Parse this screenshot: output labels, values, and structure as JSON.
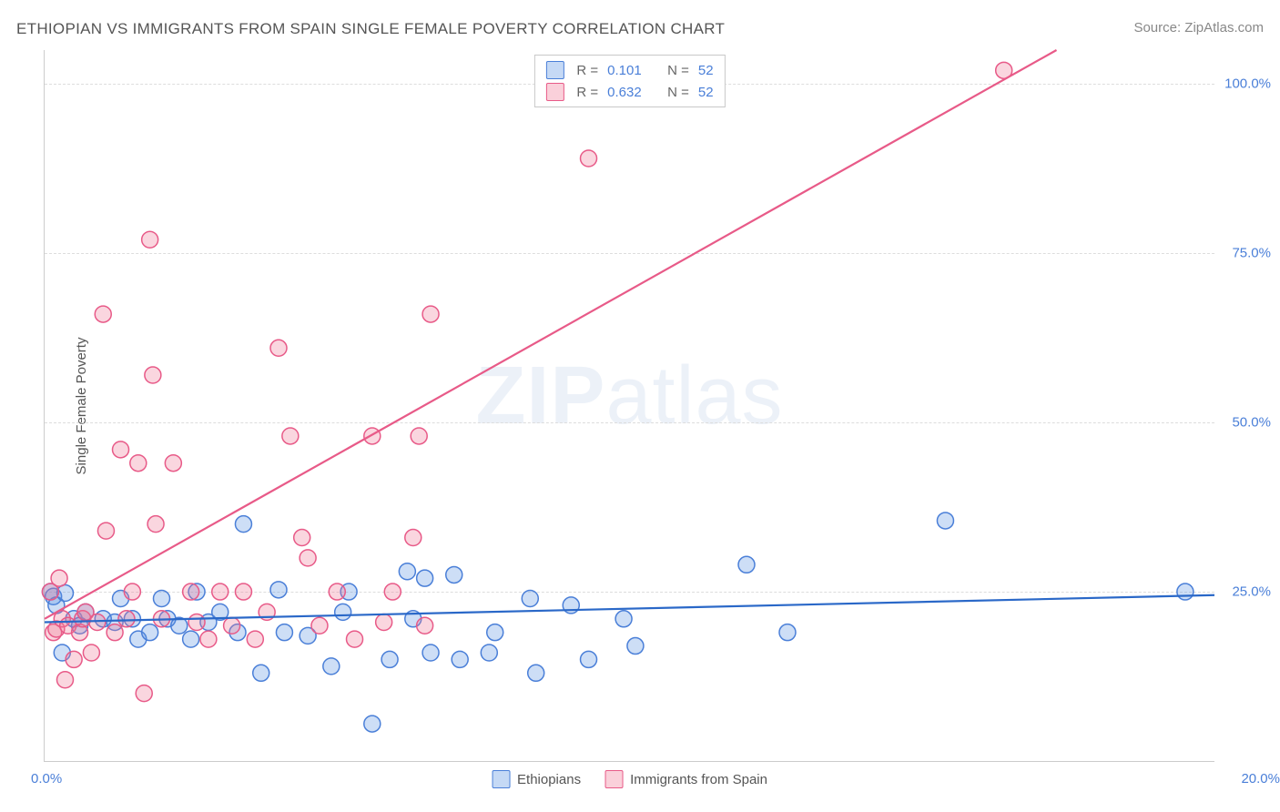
{
  "title": "ETHIOPIAN VS IMMIGRANTS FROM SPAIN SINGLE FEMALE POVERTY CORRELATION CHART",
  "source": "Source: ZipAtlas.com",
  "y_axis_label": "Single Female Poverty",
  "watermark_zip": "ZIP",
  "watermark_atlas": "atlas",
  "chart": {
    "type": "scatter",
    "x_range": [
      0,
      20
    ],
    "y_range": [
      0,
      105
    ],
    "x_tick_labels": {
      "start": "0.0%",
      "end": "20.0%"
    },
    "y_gridlines": [
      25,
      50,
      75,
      100
    ],
    "y_tick_labels": [
      "25.0%",
      "50.0%",
      "75.0%",
      "100.0%"
    ],
    "background_color": "#ffffff",
    "grid_color": "#dddddd",
    "axis_color": "#cccccc",
    "tick_label_color": "#4a7fd8",
    "axis_label_color": "#555555",
    "marker_radius": 9,
    "marker_stroke_width": 1.5,
    "line_width": 2.2,
    "series": [
      {
        "name": "Ethiopians",
        "fill_color": "rgba(90,145,225,0.30)",
        "stroke_color": "#4a7fd8",
        "line_color": "#2a68c8",
        "R": "0.101",
        "N": "52",
        "trend_line": {
          "x1": 0,
          "y1": 20.5,
          "x2": 20,
          "y2": 24.5
        },
        "points": [
          [
            0.1,
            25
          ],
          [
            0.15,
            24.3
          ],
          [
            0.2,
            23
          ],
          [
            0.3,
            16
          ],
          [
            0.35,
            24.8
          ],
          [
            0.5,
            21
          ],
          [
            0.6,
            20
          ],
          [
            0.7,
            22
          ],
          [
            1.0,
            21
          ],
          [
            1.2,
            20.5
          ],
          [
            1.3,
            24
          ],
          [
            1.5,
            21
          ],
          [
            1.6,
            18
          ],
          [
            1.8,
            19
          ],
          [
            2.0,
            24
          ],
          [
            2.1,
            21
          ],
          [
            2.3,
            20
          ],
          [
            2.5,
            18
          ],
          [
            2.6,
            25
          ],
          [
            2.8,
            20.5
          ],
          [
            3.0,
            22
          ],
          [
            3.3,
            19
          ],
          [
            3.4,
            35
          ],
          [
            3.7,
            13
          ],
          [
            4.0,
            25.3
          ],
          [
            4.1,
            19
          ],
          [
            4.5,
            18.5
          ],
          [
            4.9,
            14
          ],
          [
            5.1,
            22
          ],
          [
            5.2,
            25
          ],
          [
            5.6,
            5.5
          ],
          [
            5.9,
            15
          ],
          [
            6.2,
            28
          ],
          [
            6.3,
            21
          ],
          [
            6.5,
            27
          ],
          [
            6.6,
            16
          ],
          [
            7.0,
            27.5
          ],
          [
            7.1,
            15
          ],
          [
            7.6,
            16
          ],
          [
            7.7,
            19
          ],
          [
            8.3,
            24
          ],
          [
            8.4,
            13
          ],
          [
            9.0,
            23
          ],
          [
            9.3,
            15
          ],
          [
            9.9,
            21
          ],
          [
            10.1,
            17
          ],
          [
            12.0,
            29
          ],
          [
            12.7,
            19
          ],
          [
            15.4,
            35.5
          ],
          [
            19.5,
            25
          ]
        ]
      },
      {
        "name": "Immigrants from Spain",
        "fill_color": "rgba(240,120,150,0.30)",
        "stroke_color": "#e85a88",
        "line_color": "#e85a88",
        "R": "0.632",
        "N": "52",
        "trend_line": {
          "x1": 0,
          "y1": 21,
          "x2": 17.3,
          "y2": 105
        },
        "points": [
          [
            0.1,
            25
          ],
          [
            0.15,
            19
          ],
          [
            0.2,
            19.5
          ],
          [
            0.25,
            27
          ],
          [
            0.3,
            21
          ],
          [
            0.35,
            12
          ],
          [
            0.4,
            20
          ],
          [
            0.5,
            15
          ],
          [
            0.6,
            19
          ],
          [
            0.65,
            21
          ],
          [
            0.7,
            22
          ],
          [
            0.8,
            16
          ],
          [
            0.9,
            20.5
          ],
          [
            1.0,
            66
          ],
          [
            1.05,
            34
          ],
          [
            1.2,
            19
          ],
          [
            1.3,
            46
          ],
          [
            1.4,
            21
          ],
          [
            1.5,
            25
          ],
          [
            1.6,
            44
          ],
          [
            1.7,
            10
          ],
          [
            1.8,
            77
          ],
          [
            1.85,
            57
          ],
          [
            1.9,
            35
          ],
          [
            2.0,
            21
          ],
          [
            2.2,
            44
          ],
          [
            2.5,
            25
          ],
          [
            2.6,
            20.5
          ],
          [
            2.8,
            18
          ],
          [
            3.0,
            25
          ],
          [
            3.2,
            20
          ],
          [
            3.4,
            25
          ],
          [
            3.6,
            18
          ],
          [
            3.8,
            22
          ],
          [
            4.0,
            61
          ],
          [
            4.2,
            48
          ],
          [
            4.4,
            33
          ],
          [
            4.5,
            30
          ],
          [
            4.7,
            20
          ],
          [
            5.0,
            25
          ],
          [
            5.3,
            18
          ],
          [
            5.6,
            48
          ],
          [
            5.8,
            20.5
          ],
          [
            5.95,
            25
          ],
          [
            6.3,
            33
          ],
          [
            6.4,
            48
          ],
          [
            6.5,
            20
          ],
          [
            6.6,
            66
          ],
          [
            9.3,
            89
          ],
          [
            16.4,
            102
          ]
        ]
      }
    ]
  },
  "legend_top_labels": {
    "R": "R =",
    "N": "N ="
  },
  "legend_bottom": [
    "Ethiopians",
    "Immigrants from Spain"
  ]
}
